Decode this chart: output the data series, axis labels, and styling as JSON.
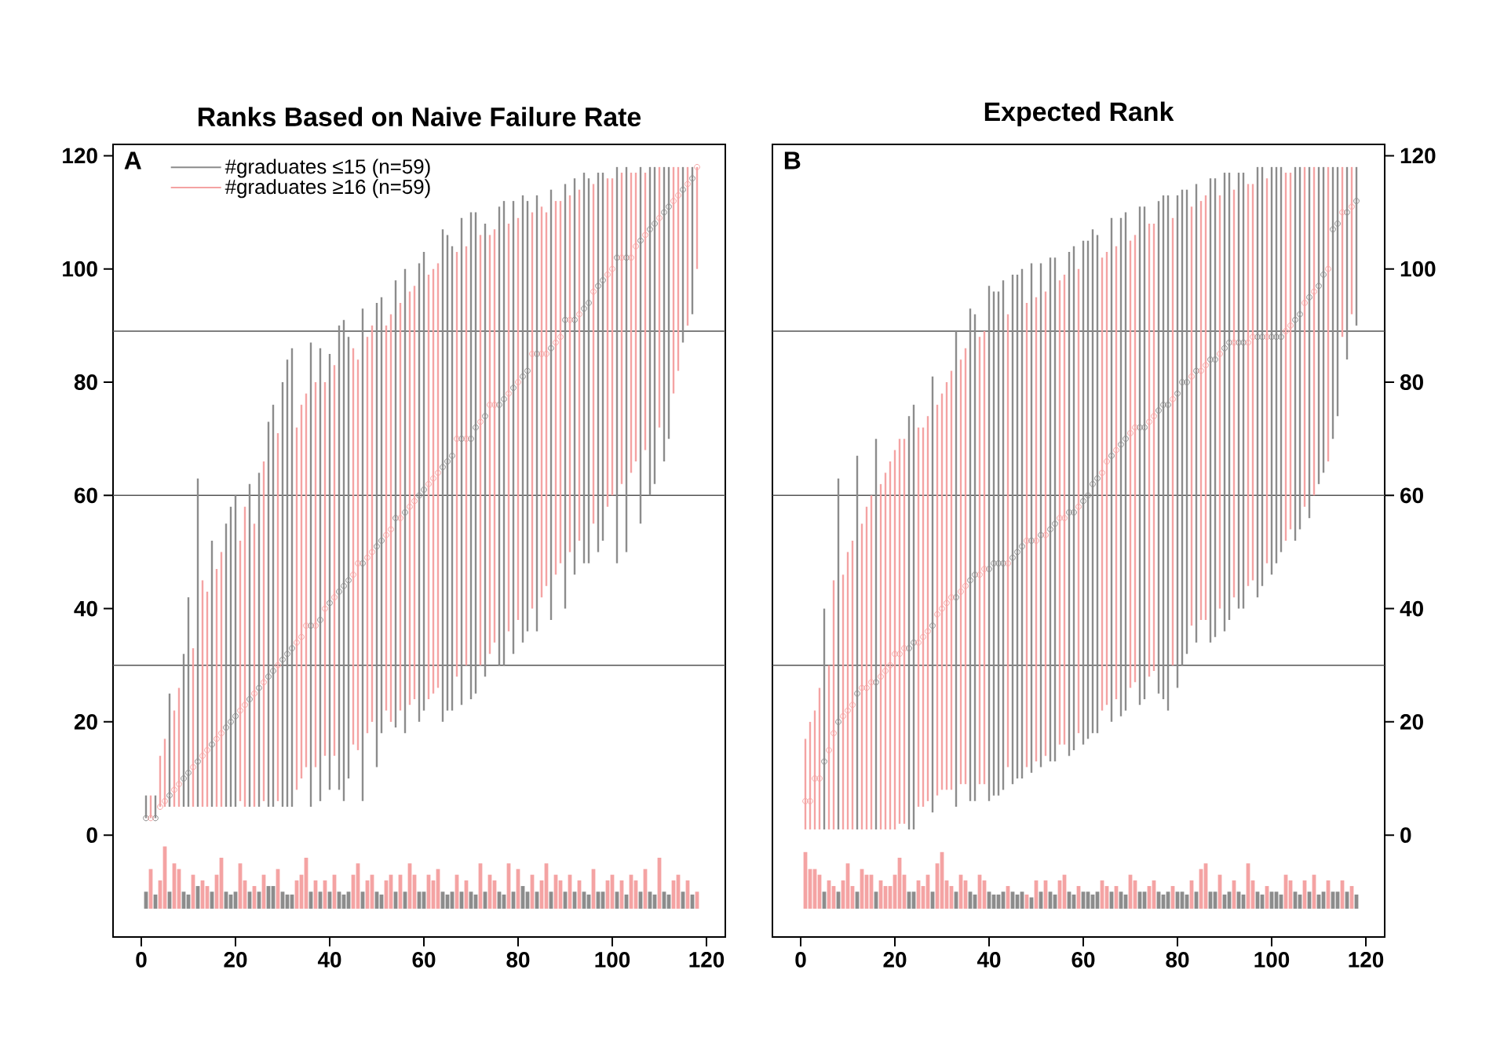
{
  "chart_data": [
    {
      "type": "scatter",
      "title": "Ranks Based on Naive Failure Rate",
      "annotations": [
        "A"
      ],
      "xlim": [
        -6,
        124
      ],
      "xticks": [
        0,
        20,
        40,
        60,
        80,
        100,
        120
      ],
      "ylim": [
        -18,
        122
      ],
      "yticks": [
        0,
        20,
        40,
        60,
        80,
        100,
        120
      ],
      "legend": "top left",
      "marker": "circle",
      "ref_lines": [
        {
          "axis": "y",
          "value": 30,
          "color": "#555555"
        },
        {
          "axis": "y",
          "value": 60,
          "color": "#555555"
        },
        {
          "axis": "y",
          "value": 89,
          "color": "#555555"
        }
      ],
      "series": [
        {
          "type": "bar",
          "color": "#8c8c8c",
          "x": [
            1,
            3,
            6,
            9,
            10,
            12,
            15,
            18,
            19,
            20,
            23,
            25,
            27,
            28,
            30,
            31,
            32,
            36,
            38,
            40,
            42,
            43,
            44,
            47,
            50,
            51,
            54,
            56,
            59,
            60,
            64,
            65,
            66,
            68,
            70,
            71,
            73,
            76,
            77,
            79,
            81,
            82,
            84,
            87,
            90,
            92,
            94,
            95,
            97,
            98,
            101,
            103,
            106,
            108,
            109,
            111,
            112,
            115,
            117
          ],
          "values": [
            3,
            2.5,
            3,
            3,
            2.5,
            4,
            3,
            3,
            2.5,
            3,
            3,
            3,
            4,
            4,
            3,
            2.5,
            2.5,
            3,
            3,
            3,
            3,
            2.5,
            3,
            3,
            3,
            2.5,
            3,
            3,
            3,
            3,
            3,
            2.5,
            3,
            3,
            3,
            2.5,
            3,
            3,
            2.5,
            3,
            4,
            3,
            3,
            3,
            3,
            3,
            3,
            2.5,
            3,
            3,
            3,
            2.5,
            3,
            3,
            2.5,
            3,
            2.5,
            3,
            2.5
          ],
          "base": [
            -13,
            -13,
            -13,
            -13,
            -13,
            -13,
            -13,
            -13,
            -13,
            -13,
            -13,
            -13,
            -13,
            -13,
            -13,
            -13,
            -13,
            -13,
            -13,
            -13,
            -13,
            -13,
            -13,
            -13,
            -13,
            -13,
            -13,
            -13,
            -13,
            -13,
            -13,
            -13,
            -13,
            -13,
            -13,
            -13,
            -13,
            -13,
            -13,
            -13,
            -13,
            -13,
            -13,
            -13,
            -13,
            -13,
            -13,
            -13,
            -13,
            -13,
            -13,
            -13,
            -13,
            -13,
            -13,
            -13,
            -13,
            -13,
            -13
          ]
        },
        {
          "type": "bar",
          "color": "#f4a3a3",
          "x": [
            2,
            4,
            5,
            7,
            8,
            11,
            13,
            14,
            16,
            17,
            21,
            22,
            24,
            26,
            29,
            33,
            34,
            35,
            37,
            39,
            41,
            45,
            46,
            48,
            49,
            52,
            53,
            55,
            57,
            58,
            61,
            62,
            63,
            67,
            69,
            72,
            74,
            75,
            78,
            80,
            83,
            85,
            86,
            88,
            89,
            91,
            93,
            96,
            99,
            100,
            102,
            104,
            105,
            107,
            110,
            113,
            114,
            116,
            118
          ],
          "values": [
            7,
            5,
            11,
            8,
            7,
            6,
            5,
            4,
            6,
            9,
            8,
            5,
            4,
            6,
            7,
            5,
            6,
            9,
            5,
            5,
            6,
            6,
            8,
            5,
            6,
            5,
            6,
            6,
            8,
            6,
            6,
            5,
            7,
            6,
            5,
            8,
            6,
            5,
            8,
            7,
            6,
            5,
            8,
            6,
            5,
            6,
            5,
            7,
            5,
            6,
            5,
            6,
            5,
            7,
            9,
            5,
            6,
            5,
            3
          ],
          "base": [
            -13,
            -13,
            -13,
            -13,
            -13,
            -13,
            -13,
            -13,
            -13,
            -13,
            -13,
            -13,
            -13,
            -13,
            -13,
            -13,
            -13,
            -13,
            -13,
            -13,
            -13,
            -13,
            -13,
            -13,
            -13,
            -13,
            -13,
            -13,
            -13,
            -13,
            -13,
            -13,
            -13,
            -13,
            -13,
            -13,
            -13,
            -13,
            -13,
            -13,
            -13,
            -13,
            -13,
            -13,
            -13,
            -13,
            -13,
            -13,
            -13,
            -13,
            -13,
            -13,
            -13,
            -13,
            -13,
            -13,
            -13,
            -13,
            -13
          ]
        },
        {
          "name": "#graduates ≤15 (n=59)",
          "color": "#8c8c8c",
          "x": [
            1,
            3,
            6,
            9,
            10,
            12,
            15,
            18,
            19,
            20,
            23,
            25,
            27,
            28,
            30,
            31,
            32,
            36,
            38,
            40,
            42,
            43,
            44,
            47,
            50,
            51,
            54,
            56,
            59,
            60,
            64,
            65,
            66,
            68,
            70,
            71,
            73,
            76,
            77,
            79,
            81,
            82,
            84,
            87,
            90,
            92,
            94,
            95,
            97,
            98,
            101,
            103,
            106,
            108,
            109,
            111,
            112,
            115,
            117
          ],
          "values": [
            3,
            3,
            7,
            10,
            11,
            13,
            16,
            19,
            20,
            21,
            24,
            26,
            28,
            29,
            31,
            32,
            33,
            37,
            38,
            41,
            43,
            44,
            45,
            48,
            51,
            52,
            56,
            57,
            60,
            61,
            65,
            66,
            67,
            70,
            70,
            72,
            74,
            76,
            77,
            79,
            81,
            82,
            85,
            86,
            91,
            91,
            93,
            94,
            97,
            98,
            102,
            102,
            105,
            107,
            108,
            110,
            111,
            114,
            116
          ],
          "errors": [
            [
              3,
              7
            ],
            [
              3,
              7
            ],
            [
              5,
              25
            ],
            [
              5,
              32
            ],
            [
              5,
              42
            ],
            [
              5,
              63
            ],
            [
              5,
              52
            ],
            [
              5,
              55
            ],
            [
              5,
              58
            ],
            [
              5,
              60
            ],
            [
              5,
              62
            ],
            [
              5,
              64
            ],
            [
              5,
              73
            ],
            [
              5,
              76
            ],
            [
              5,
              80
            ],
            [
              5,
              84
            ],
            [
              5,
              86
            ],
            [
              5,
              87
            ],
            [
              6,
              86
            ],
            [
              8,
              85
            ],
            [
              8,
              90
            ],
            [
              6,
              91
            ],
            [
              10,
              88
            ],
            [
              6,
              93
            ],
            [
              12,
              94
            ],
            [
              18,
              95
            ],
            [
              19,
              98
            ],
            [
              18,
              100
            ],
            [
              20,
              101
            ],
            [
              22,
              103
            ],
            [
              20,
              107
            ],
            [
              22,
              106
            ],
            [
              22,
              104
            ],
            [
              23,
              109
            ],
            [
              24,
              110
            ],
            [
              25,
              110
            ],
            [
              28,
              108
            ],
            [
              30,
              111
            ],
            [
              30,
              112
            ],
            [
              32,
              112
            ],
            [
              34,
              113
            ],
            [
              36,
              112
            ],
            [
              36,
              113
            ],
            [
              38,
              114
            ],
            [
              40,
              115
            ],
            [
              46,
              116
            ],
            [
              48,
              117
            ],
            [
              48,
              116
            ],
            [
              50,
              117
            ],
            [
              52,
              117
            ],
            [
              48,
              118
            ],
            [
              50,
              118
            ],
            [
              55,
              118
            ],
            [
              60,
              118
            ],
            [
              62,
              118
            ],
            [
              66,
              118
            ],
            [
              70,
              118
            ],
            [
              87,
              118
            ],
            [
              92,
              118
            ]
          ]
        },
        {
          "name": "#graduates ≥16 (n=59)",
          "color": "#f4a3a3",
          "x": [
            2,
            4,
            5,
            7,
            8,
            11,
            13,
            14,
            16,
            17,
            21,
            22,
            24,
            26,
            29,
            33,
            34,
            35,
            37,
            39,
            41,
            45,
            46,
            48,
            49,
            52,
            53,
            55,
            57,
            58,
            61,
            62,
            63,
            67,
            69,
            72,
            74,
            75,
            78,
            80,
            83,
            85,
            86,
            88,
            89,
            91,
            93,
            96,
            99,
            100,
            102,
            104,
            105,
            107,
            110,
            113,
            114,
            116,
            118
          ],
          "values": [
            3,
            5,
            6,
            8,
            9,
            12,
            14,
            15,
            17,
            18,
            22,
            23,
            25,
            27,
            30,
            34,
            35,
            37,
            37,
            40,
            42,
            46,
            48,
            49,
            50,
            53,
            54,
            56,
            58,
            59,
            62,
            63,
            64,
            70,
            70,
            73,
            76,
            76,
            78,
            80,
            85,
            85,
            85,
            87,
            88,
            91,
            92,
            96,
            99,
            100,
            102,
            102,
            104,
            106,
            109,
            112,
            113,
            115,
            118
          ],
          "errors": [
            [
              3,
              7
            ],
            [
              5,
              14
            ],
            [
              5,
              17
            ],
            [
              5,
              22
            ],
            [
              5,
              26
            ],
            [
              5,
              33
            ],
            [
              5,
              45
            ],
            [
              5,
              43
            ],
            [
              5,
              47
            ],
            [
              5,
              50
            ],
            [
              6,
              52
            ],
            [
              5,
              58
            ],
            [
              5,
              55
            ],
            [
              6,
              66
            ],
            [
              6,
              71
            ],
            [
              8,
              72
            ],
            [
              10,
              76
            ],
            [
              12,
              78
            ],
            [
              12,
              80
            ],
            [
              14,
              80
            ],
            [
              14,
              83
            ],
            [
              16,
              86
            ],
            [
              15,
              84
            ],
            [
              18,
              88
            ],
            [
              20,
              90
            ],
            [
              22,
              90
            ],
            [
              20,
              92
            ],
            [
              22,
              94
            ],
            [
              23,
              96
            ],
            [
              24,
              97
            ],
            [
              24,
              99
            ],
            [
              25,
              100
            ],
            [
              26,
              101
            ],
            [
              28,
              103
            ],
            [
              30,
              104
            ],
            [
              30,
              106
            ],
            [
              32,
              106
            ],
            [
              34,
              107
            ],
            [
              36,
              108
            ],
            [
              38,
              109
            ],
            [
              40,
              110
            ],
            [
              42,
              111
            ],
            [
              44,
              110
            ],
            [
              46,
              112
            ],
            [
              48,
              112
            ],
            [
              50,
              113
            ],
            [
              52,
              114
            ],
            [
              55,
              115
            ],
            [
              58,
              116
            ],
            [
              60,
              116
            ],
            [
              62,
              117
            ],
            [
              64,
              117
            ],
            [
              66,
              117
            ],
            [
              68,
              117
            ],
            [
              72,
              118
            ],
            [
              78,
              118
            ],
            [
              82,
              118
            ],
            [
              90,
              118
            ],
            [
              100,
              118
            ]
          ]
        }
      ]
    },
    {
      "type": "scatter",
      "title": "Expected Rank",
      "annotations": [
        "B"
      ],
      "xlim": [
        -6,
        124
      ],
      "xticks": [
        0,
        20,
        40,
        60,
        80,
        100,
        120
      ],
      "y2lim": [
        -18,
        122
      ],
      "y2ticks": [
        0,
        20,
        40,
        60,
        80,
        100,
        120
      ],
      "marker": "circle",
      "ref_lines": [
        {
          "axis": "y2",
          "value": 30,
          "color": "#555555"
        },
        {
          "axis": "y2",
          "value": 60,
          "color": "#555555"
        },
        {
          "axis": "y2",
          "value": 89,
          "color": "#555555"
        }
      ],
      "series": [
        {
          "type": "bar",
          "axis": "y2",
          "color": "#8c8c8c",
          "x": [
            5,
            8,
            12,
            16,
            23,
            24,
            28,
            33,
            36,
            37,
            40,
            41,
            42,
            43,
            45,
            46,
            47,
            49,
            51,
            53,
            54,
            57,
            58,
            60,
            61,
            62,
            63,
            66,
            68,
            69,
            72,
            73,
            76,
            77,
            78,
            80,
            81,
            82,
            84,
            87,
            88,
            90,
            91,
            93,
            94,
            97,
            98,
            100,
            101,
            102,
            105,
            106,
            108,
            110,
            111,
            113,
            114,
            116,
            118
          ],
          "values": [
            3,
            3,
            3,
            3,
            3,
            3,
            3,
            3,
            3,
            2.5,
            3,
            2.5,
            2.5,
            3,
            3,
            2.5,
            3,
            2,
            3,
            3,
            2.5,
            3,
            2.5,
            3,
            3,
            2.5,
            3,
            3,
            3,
            2.5,
            3,
            3,
            3,
            2.5,
            3,
            3,
            3,
            2.5,
            3,
            3,
            3,
            2.5,
            3,
            3,
            2.5,
            3,
            2.5,
            3,
            3,
            2.5,
            3,
            2.5,
            3,
            2.5,
            3,
            3,
            3,
            3,
            2.5
          ],
          "base": [
            -13,
            -13,
            -13,
            -13,
            -13,
            -13,
            -13,
            -13,
            -13,
            -13,
            -13,
            -13,
            -13,
            -13,
            -13,
            -13,
            -13,
            -13,
            -13,
            -13,
            -13,
            -13,
            -13,
            -13,
            -13,
            -13,
            -13,
            -13,
            -13,
            -13,
            -13,
            -13,
            -13,
            -13,
            -13,
            -13,
            -13,
            -13,
            -13,
            -13,
            -13,
            -13,
            -13,
            -13,
            -13,
            -13,
            -13,
            -13,
            -13,
            -13,
            -13,
            -13,
            -13,
            -13,
            -13,
            -13,
            -13,
            -13,
            -13
          ]
        },
        {
          "type": "bar",
          "axis": "y2",
          "color": "#f4a3a3",
          "x": [
            1,
            2,
            3,
            4,
            6,
            7,
            9,
            10,
            11,
            13,
            14,
            15,
            17,
            18,
            19,
            20,
            21,
            22,
            25,
            26,
            27,
            29,
            30,
            31,
            32,
            34,
            35,
            38,
            39,
            44,
            48,
            50,
            52,
            55,
            56,
            59,
            64,
            65,
            67,
            70,
            71,
            74,
            75,
            79,
            83,
            85,
            86,
            89,
            92,
            95,
            96,
            99,
            103,
            104,
            107,
            109,
            112,
            115,
            117
          ],
          "values": [
            10,
            7,
            7,
            6,
            5,
            4,
            5,
            8,
            4,
            7,
            6,
            6,
            5,
            4,
            4,
            6,
            9,
            6,
            5,
            4,
            6,
            8,
            10,
            5,
            4,
            6,
            5,
            6,
            5,
            4,
            2.5,
            5,
            5,
            5,
            6,
            4,
            5,
            4,
            4,
            6,
            5,
            4,
            5,
            4,
            5,
            7,
            8,
            6,
            5,
            8,
            5,
            4,
            6,
            5,
            5,
            6,
            5,
            5,
            4
          ],
          "base": [
            -13,
            -13,
            -13,
            -13,
            -13,
            -13,
            -13,
            -13,
            -13,
            -13,
            -13,
            -13,
            -13,
            -13,
            -13,
            -13,
            -13,
            -13,
            -13,
            -13,
            -13,
            -13,
            -13,
            -13,
            -13,
            -13,
            -13,
            -13,
            -13,
            -13,
            -13,
            -13,
            -13,
            -13,
            -13,
            -13,
            -13,
            -13,
            -13,
            -13,
            -13,
            -13,
            -13,
            -13,
            -13,
            -13,
            -13,
            -13,
            -13,
            -13,
            -13,
            -13,
            -13,
            -13,
            -13,
            -13,
            -13,
            -13,
            -13
          ]
        },
        {
          "axis": "y2",
          "color": "#8c8c8c",
          "x": [
            5,
            8,
            12,
            16,
            23,
            24,
            28,
            33,
            36,
            37,
            40,
            41,
            42,
            43,
            45,
            46,
            47,
            49,
            51,
            53,
            54,
            57,
            58,
            60,
            61,
            62,
            63,
            66,
            68,
            69,
            72,
            73,
            76,
            77,
            78,
            80,
            81,
            82,
            84,
            87,
            88,
            90,
            91,
            93,
            94,
            97,
            98,
            100,
            101,
            102,
            105,
            106,
            108,
            110,
            111,
            113,
            114,
            116,
            118
          ],
          "values": [
            13,
            20,
            25,
            27,
            33,
            34,
            37,
            42,
            45,
            46,
            47,
            48,
            48,
            48,
            49,
            50,
            51,
            52,
            53,
            54,
            55,
            57,
            57,
            59,
            60,
            62,
            63,
            67,
            69,
            70,
            72,
            72,
            75,
            76,
            76,
            78,
            80,
            80,
            82,
            84,
            84,
            86,
            87,
            87,
            87,
            88,
            88,
            88,
            88,
            88,
            91,
            92,
            95,
            97,
            99,
            107,
            108,
            110,
            112
          ],
          "errors": [
            [
              1,
              40
            ],
            [
              1,
              63
            ],
            [
              1,
              67
            ],
            [
              1,
              70
            ],
            [
              1,
              74
            ],
            [
              1,
              76
            ],
            [
              4,
              81
            ],
            [
              5,
              89
            ],
            [
              6,
              93
            ],
            [
              6,
              92
            ],
            [
              6,
              97
            ],
            [
              7,
              96
            ],
            [
              7,
              96
            ],
            [
              8,
              98
            ],
            [
              9,
              99
            ],
            [
              10,
              99
            ],
            [
              10,
              100
            ],
            [
              11,
              101
            ],
            [
              12,
              101
            ],
            [
              13,
              102
            ],
            [
              13,
              102
            ],
            [
              14,
              103
            ],
            [
              15,
              104
            ],
            [
              16,
              105
            ],
            [
              17,
              105
            ],
            [
              18,
              107
            ],
            [
              18,
              106
            ],
            [
              20,
              109
            ],
            [
              21,
              109
            ],
            [
              22,
              110
            ],
            [
              23,
              111
            ],
            [
              24,
              111
            ],
            [
              25,
              112
            ],
            [
              24,
              113
            ],
            [
              22,
              113
            ],
            [
              26,
              113
            ],
            [
              30,
              114
            ],
            [
              32,
              114
            ],
            [
              34,
              115
            ],
            [
              34,
              116
            ],
            [
              35,
              116
            ],
            [
              36,
              117
            ],
            [
              38,
              117
            ],
            [
              40,
              117
            ],
            [
              40,
              117
            ],
            [
              42,
              118
            ],
            [
              44,
              118
            ],
            [
              46,
              118
            ],
            [
              48,
              118
            ],
            [
              50,
              118
            ],
            [
              52,
              118
            ],
            [
              54,
              118
            ],
            [
              56,
              118
            ],
            [
              62,
              118
            ],
            [
              64,
              118
            ],
            [
              70,
              118
            ],
            [
              74,
              118
            ],
            [
              84,
              118
            ],
            [
              90,
              118
            ]
          ]
        },
        {
          "axis": "y2",
          "color": "#f4a3a3",
          "x": [
            1,
            2,
            3,
            4,
            6,
            7,
            9,
            10,
            11,
            13,
            14,
            15,
            17,
            18,
            19,
            20,
            21,
            22,
            25,
            26,
            27,
            29,
            30,
            31,
            32,
            34,
            35,
            38,
            39,
            44,
            48,
            50,
            52,
            55,
            56,
            59,
            64,
            65,
            67,
            70,
            71,
            74,
            75,
            79,
            83,
            85,
            86,
            89,
            92,
            95,
            96,
            99,
            103,
            104,
            107,
            109,
            112,
            115,
            117
          ],
          "values": [
            6,
            6,
            10,
            10,
            15,
            18,
            21,
            22,
            23,
            26,
            26,
            27,
            28,
            29,
            30,
            32,
            32,
            33,
            34,
            35,
            36,
            39,
            40,
            41,
            42,
            43,
            44,
            46,
            47,
            48,
            52,
            52,
            53,
            56,
            56,
            58,
            64,
            66,
            68,
            71,
            72,
            73,
            74,
            77,
            81,
            82,
            83,
            85,
            87,
            87,
            88,
            88,
            89,
            90,
            94,
            96,
            100,
            110,
            111
          ],
          "errors": [
            [
              1,
              17
            ],
            [
              1,
              20
            ],
            [
              1,
              22
            ],
            [
              1,
              26
            ],
            [
              1,
              30
            ],
            [
              1,
              45
            ],
            [
              1,
              46
            ],
            [
              1,
              50
            ],
            [
              1,
              52
            ],
            [
              1,
              55
            ],
            [
              1,
              58
            ],
            [
              1,
              60
            ],
            [
              1,
              62
            ],
            [
              1,
              64
            ],
            [
              1,
              66
            ],
            [
              1,
              68
            ],
            [
              2,
              70
            ],
            [
              2,
              70
            ],
            [
              5,
              72
            ],
            [
              5,
              72
            ],
            [
              6,
              74
            ],
            [
              7,
              76
            ],
            [
              8,
              78
            ],
            [
              8,
              80
            ],
            [
              8,
              82
            ],
            [
              9,
              84
            ],
            [
              9,
              86
            ],
            [
              9,
              88
            ],
            [
              9,
              89
            ],
            [
              12,
              92
            ],
            [
              12,
              94
            ],
            [
              13,
              95
            ],
            [
              14,
              96
            ],
            [
              16,
              98
            ],
            [
              16,
              99
            ],
            [
              18,
              100
            ],
            [
              22,
              102
            ],
            [
              23,
              103
            ],
            [
              24,
              104
            ],
            [
              26,
              105
            ],
            [
              27,
              106
            ],
            [
              28,
              108
            ],
            [
              29,
              108
            ],
            [
              30,
              109
            ],
            [
              37,
              111
            ],
            [
              38,
              112
            ],
            [
              38,
              113
            ],
            [
              40,
              113
            ],
            [
              42,
              114
            ],
            [
              44,
              115
            ],
            [
              45,
              115
            ],
            [
              48,
              116
            ],
            [
              52,
              117
            ],
            [
              54,
              117
            ],
            [
              58,
              118
            ],
            [
              60,
              118
            ],
            [
              66,
              118
            ],
            [
              88,
              118
            ],
            [
              92,
              118
            ]
          ]
        }
      ]
    }
  ]
}
